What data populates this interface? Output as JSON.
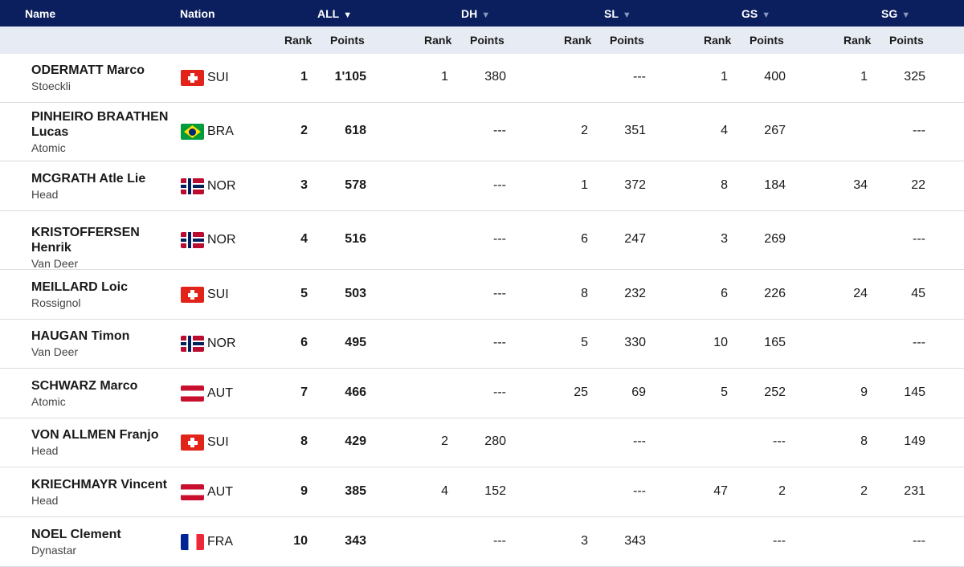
{
  "header": {
    "name": "Name",
    "nation": "Nation",
    "disciplines": [
      "ALL",
      "DH",
      "SL",
      "GS",
      "SG"
    ]
  },
  "subheader": {
    "rank": "Rank",
    "points": "Points"
  },
  "colors": {
    "header_bg": "#0b1f5e",
    "subheader_bg": "#e7ebf3"
  },
  "rows": [
    {
      "name": "ODERMATT Marco",
      "brand": "Stoeckli",
      "flag": "SUI",
      "nation": "SUI",
      "all_rank": "1",
      "all_points": "1'105",
      "dh_rank": "1",
      "dh_points": "380",
      "sl_rank": "",
      "sl_points": "---",
      "gs_rank": "1",
      "gs_points": "400",
      "sg_rank": "1",
      "sg_points": "325"
    },
    {
      "name": "PINHEIRO BRAATHEN Lucas",
      "brand": "Atomic",
      "flag": "BRA",
      "nation": "BRA",
      "all_rank": "2",
      "all_points": "618",
      "dh_rank": "",
      "dh_points": "---",
      "sl_rank": "2",
      "sl_points": "351",
      "gs_rank": "4",
      "gs_points": "267",
      "sg_rank": "",
      "sg_points": "---"
    },
    {
      "name": "MCGRATH Atle Lie",
      "brand": "Head",
      "flag": "NOR",
      "nation": "NOR",
      "all_rank": "3",
      "all_points": "578",
      "dh_rank": "",
      "dh_points": "---",
      "sl_rank": "1",
      "sl_points": "372",
      "gs_rank": "8",
      "gs_points": "184",
      "sg_rank": "34",
      "sg_points": "22"
    },
    {
      "name": "KRISTOFFERSEN Henrik",
      "brand": "Van Deer",
      "flag": "NOR",
      "nation": "NOR",
      "all_rank": "4",
      "all_points": "516",
      "dh_rank": "",
      "dh_points": "---",
      "sl_rank": "6",
      "sl_points": "247",
      "gs_rank": "3",
      "gs_points": "269",
      "sg_rank": "",
      "sg_points": "---"
    },
    {
      "name": "MEILLARD Loic",
      "brand": "Rossignol",
      "flag": "SUI",
      "nation": "SUI",
      "all_rank": "5",
      "all_points": "503",
      "dh_rank": "",
      "dh_points": "---",
      "sl_rank": "8",
      "sl_points": "232",
      "gs_rank": "6",
      "gs_points": "226",
      "sg_rank": "24",
      "sg_points": "45"
    },
    {
      "name": "HAUGAN Timon",
      "brand": "Van Deer",
      "flag": "NOR",
      "nation": "NOR",
      "all_rank": "6",
      "all_points": "495",
      "dh_rank": "",
      "dh_points": "---",
      "sl_rank": "5",
      "sl_points": "330",
      "gs_rank": "10",
      "gs_points": "165",
      "sg_rank": "",
      "sg_points": "---"
    },
    {
      "name": "SCHWARZ Marco",
      "brand": "Atomic",
      "flag": "AUT",
      "nation": "AUT",
      "all_rank": "7",
      "all_points": "466",
      "dh_rank": "",
      "dh_points": "---",
      "sl_rank": "25",
      "sl_points": "69",
      "gs_rank": "5",
      "gs_points": "252",
      "sg_rank": "9",
      "sg_points": "145"
    },
    {
      "name": "VON ALLMEN Franjo",
      "brand": "Head",
      "flag": "SUI",
      "nation": "SUI",
      "all_rank": "8",
      "all_points": "429",
      "dh_rank": "2",
      "dh_points": "280",
      "sl_rank": "",
      "sl_points": "---",
      "gs_rank": "",
      "gs_points": "---",
      "sg_rank": "8",
      "sg_points": "149"
    },
    {
      "name": "KRIECHMAYR Vincent",
      "brand": "Head",
      "flag": "AUT",
      "nation": "AUT",
      "all_rank": "9",
      "all_points": "385",
      "dh_rank": "4",
      "dh_points": "152",
      "sl_rank": "",
      "sl_points": "---",
      "gs_rank": "47",
      "gs_points": "2",
      "sg_rank": "2",
      "sg_points": "231"
    },
    {
      "name": "NOEL Clement",
      "brand": "Dynastar",
      "flag": "FRA",
      "nation": "FRA",
      "all_rank": "10",
      "all_points": "343",
      "dh_rank": "",
      "dh_points": "---",
      "sl_rank": "3",
      "sl_points": "343",
      "gs_rank": "",
      "gs_points": "---",
      "sg_rank": "",
      "sg_points": "---"
    }
  ]
}
